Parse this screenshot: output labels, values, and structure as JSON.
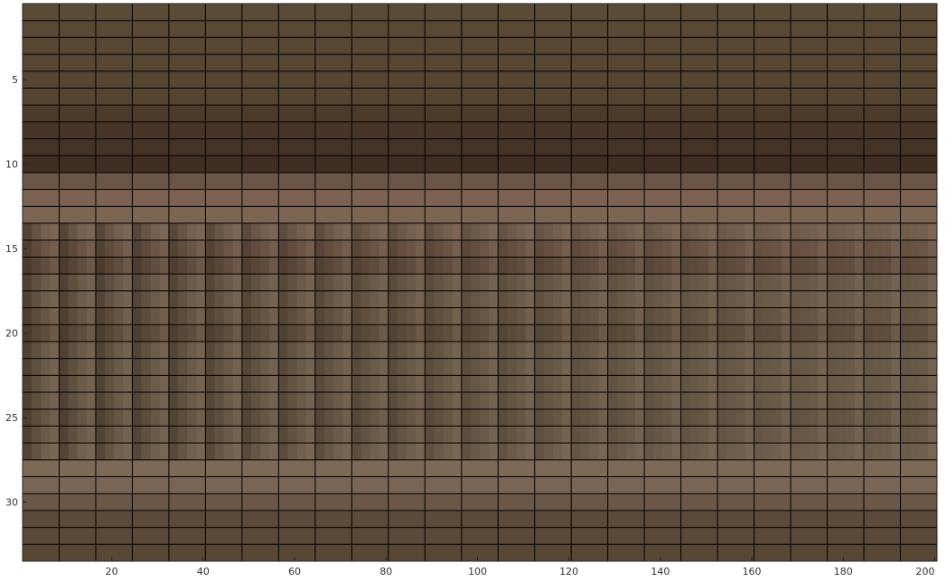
{
  "chart_data": {
    "type": "heatmap",
    "title": "",
    "xlabel": "",
    "ylabel": "",
    "xlim": [
      0.5,
      200.5
    ],
    "ylim": [
      0.5,
      33.5
    ],
    "y_reversed": true,
    "n_rows": 33,
    "n_cols": 200,
    "column_block_boundaries": [
      0.5,
      8.5,
      16.5,
      24.5,
      32.5,
      40.5,
      48.5,
      56.5,
      64.5,
      72.5,
      80.5,
      88.5,
      96.5,
      104.5,
      112.5,
      120.5,
      128.5,
      136.5,
      144.5,
      152.5,
      160.5,
      168.5,
      176.5,
      184.5,
      192.5,
      200.5
    ],
    "x_ticks": [
      {
        "value": 20,
        "label": "20"
      },
      {
        "value": 40,
        "label": "40"
      },
      {
        "value": 60,
        "label": "60"
      },
      {
        "value": 80,
        "label": "80"
      },
      {
        "value": 100,
        "label": "100"
      },
      {
        "value": 120,
        "label": "120"
      },
      {
        "value": 140,
        "label": "140"
      },
      {
        "value": 160,
        "label": "160"
      },
      {
        "value": 180,
        "label": "180"
      },
      {
        "value": 200,
        "label": "200"
      }
    ],
    "y_ticks": [
      {
        "value": 5,
        "label": "5"
      },
      {
        "value": 10,
        "label": "10"
      },
      {
        "value": 15,
        "label": "15"
      },
      {
        "value": 20,
        "label": "20"
      },
      {
        "value": 25,
        "label": "25"
      },
      {
        "value": 30,
        "label": "30"
      }
    ],
    "row_colors": [
      "#5a4a36",
      "#584834",
      "#574733",
      "#564632",
      "#554531",
      "#544430",
      "#4c3a2b",
      "#483528",
      "#443224",
      "#3f2e21",
      "#6a5445",
      "#7b6252",
      "#7d6554",
      "#74604f",
      "#6a5444",
      "#614c3d",
      "#6a5a48",
      "#6c5c4a",
      "#675643",
      "#5f4e3c",
      "#6b5b49",
      "#6a5a48",
      "#6b5c4a",
      "#6a5a48",
      "#665644",
      "#6b5a48",
      "#70604e",
      "#7e6957",
      "#7a6453",
      "#6a5748",
      "#5c4a3a",
      "#5a4838",
      "#594735"
    ],
    "stripe_rows": [
      14,
      15,
      16,
      17,
      18,
      19,
      20,
      21,
      22,
      23,
      24,
      25,
      26,
      27
    ],
    "dark_stripe_color": "#3a2c20",
    "light_stripe_color": "#8a7462",
    "grid": true,
    "grid_color": "#000000",
    "colorbar": false,
    "legend": "none"
  }
}
